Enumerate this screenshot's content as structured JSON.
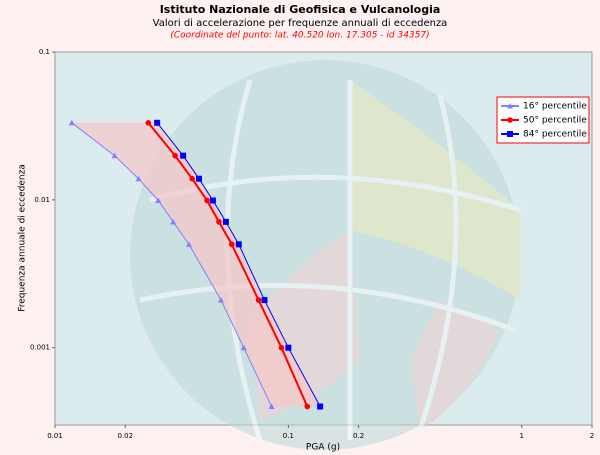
{
  "chart_data": {
    "type": "line",
    "title": "Istituto Nazionale di Geofisica e Vulcanologia",
    "subtitle": "Valori di accelerazione per frequenze annuali di eccedenza",
    "annotation": "(Coordinate del punto: lat. 40.520 lon. 17.305 - id 34357)",
    "xlabel": "PGA (g)",
    "ylabel": "Frequenza annuale di eccedenza",
    "xscale": "log",
    "yscale": "log",
    "xlim": [
      0.01,
      2
    ],
    "ylim": [
      0.0003,
      0.1
    ],
    "xticks": [
      0.01,
      0.02,
      0.1,
      0.2,
      1,
      2
    ],
    "yticks": [
      0.1,
      0.01,
      0.001
    ],
    "legend": "upper right",
    "series": [
      {
        "name": "16° percentile",
        "color": "#8080ff",
        "marker": "triangle",
        "x": [
          0.0118,
          0.018,
          0.0228,
          0.0277,
          0.0321,
          0.0375,
          0.0514,
          0.0644,
          0.0847
        ],
        "values": [
          0.0332,
          0.0199,
          0.0139,
          0.0099,
          0.0071,
          0.005,
          0.0021,
          0.001,
          0.0004
        ]
      },
      {
        "name": "50° percentile",
        "color": "#ff0000",
        "marker": "circle",
        "x": [
          0.0251,
          0.0327,
          0.0387,
          0.0448,
          0.0504,
          0.0572,
          0.0745,
          0.0934,
          0.1205
        ],
        "values": [
          0.0332,
          0.0199,
          0.0139,
          0.0099,
          0.0071,
          0.005,
          0.0021,
          0.001,
          0.0004
        ]
      },
      {
        "name": "84° percentile",
        "color": "#0000ff",
        "marker": "square",
        "x": [
          0.0274,
          0.0354,
          0.0414,
          0.0475,
          0.054,
          0.0613,
          0.079,
          0.1,
          0.1368
        ],
        "values": [
          0.0332,
          0.0199,
          0.0139,
          0.0099,
          0.0071,
          0.005,
          0.0021,
          0.001,
          0.0004
        ]
      }
    ]
  }
}
